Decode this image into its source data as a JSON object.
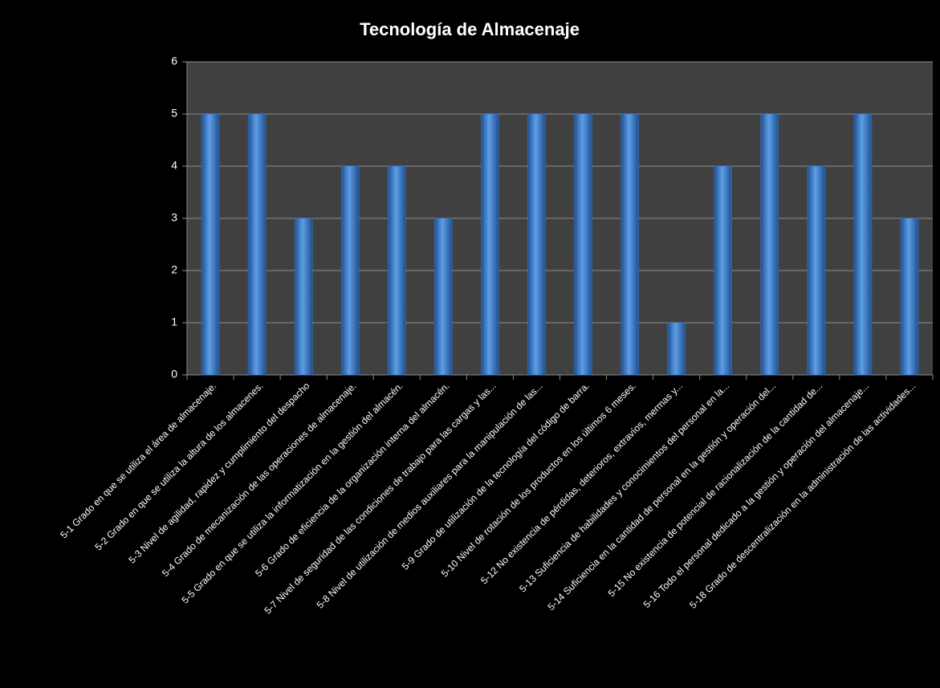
{
  "chart_data": {
    "type": "bar",
    "title": "Tecnología de Almacenaje",
    "categories": [
      "5-1 Grado en que se utiliza el área de almacenaje.",
      "5-2 Grado en que se utiliza la altura de los almacenes.",
      "5-3 Nivel de agilidad, rapidez y cumplimiento del despacho",
      "5-4 Grado de mecanización de las operaciones de almacenaje.",
      "5-5 Grado en que se utiliza la informatización en la gestión del almacén.",
      "5-6 Grado de eficiencia de la organización interna del almacén.",
      "5-7 Nivel de seguridad de las condiciones de trabajo para las cargas y las...",
      "5-8 Nivel de utilización de medios auxiliares para la manipulación de las...",
      "5-9 Grado de utilización de la tecnología del código de barra.",
      "5-10 Nivel de rotación de los productos en los últimos 6 meses.",
      "5-12 No existencia de pérdidas, deterioros, extravíos, mermas y...",
      "5-13 Suficiencia de habilidades y conocimientos del personal en la...",
      "5-14 Suficiencia en la cantidad de personal en la gestión y operación del...",
      "5-15 No existencia de potencial de racionalización de la cantidad de...",
      "5-16 Todo el personal dedicado a la gestión y operación del almacenaje...",
      "5-18 Grado de descentralización en la administración de las actividades..."
    ],
    "values": [
      5,
      5,
      3,
      4,
      4,
      3,
      5,
      5,
      5,
      5,
      1,
      4,
      5,
      4,
      5,
      3
    ],
    "color": "#3c7fd6",
    "ylim": [
      0,
      6
    ],
    "yticks": [
      0,
      1,
      2,
      3,
      4,
      5,
      6
    ],
    "grid": true
  }
}
